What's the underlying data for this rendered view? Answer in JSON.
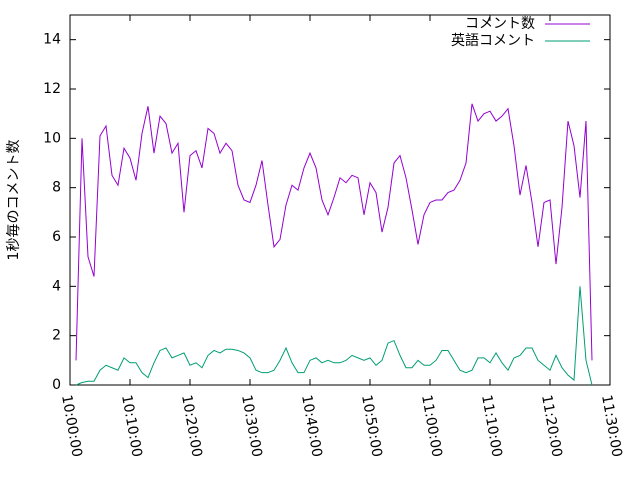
{
  "chart_data": {
    "type": "line",
    "ylabel": "1秒毎のコメント数",
    "x": [
      "10:01:00",
      "10:02:00",
      "10:03:00",
      "10:04:00",
      "10:05:00",
      "10:06:00",
      "10:07:00",
      "10:08:00",
      "10:09:00",
      "10:10:00",
      "10:11:00",
      "10:12:00",
      "10:13:00",
      "10:14:00",
      "10:15:00",
      "10:16:00",
      "10:17:00",
      "10:18:00",
      "10:19:00",
      "10:20:00",
      "10:21:00",
      "10:22:00",
      "10:23:00",
      "10:24:00",
      "10:25:00",
      "10:26:00",
      "10:27:00",
      "10:28:00",
      "10:29:00",
      "10:30:00",
      "10:31:00",
      "10:32:00",
      "10:33:00",
      "10:34:00",
      "10:35:00",
      "10:36:00",
      "10:37:00",
      "10:38:00",
      "10:39:00",
      "10:40:00",
      "10:41:00",
      "10:42:00",
      "10:43:00",
      "10:44:00",
      "10:45:00",
      "10:46:00",
      "10:47:00",
      "10:48:00",
      "10:49:00",
      "10:50:00",
      "10:51:00",
      "10:52:00",
      "10:53:00",
      "10:54:00",
      "10:55:00",
      "10:56:00",
      "10:57:00",
      "10:58:00",
      "10:59:00",
      "11:00:00",
      "11:01:00",
      "11:02:00",
      "11:03:00",
      "11:04:00",
      "11:05:00",
      "11:06:00",
      "11:07:00",
      "11:08:00",
      "11:09:00",
      "11:10:00",
      "11:11:00",
      "11:12:00",
      "11:13:00",
      "11:14:00",
      "11:15:00",
      "11:16:00",
      "11:17:00",
      "11:18:00",
      "11:19:00",
      "11:20:00",
      "11:21:00",
      "11:22:00",
      "11:23:00",
      "11:24:00",
      "11:25:00",
      "11:26:00",
      "11:27:00"
    ],
    "series": [
      {
        "name": "コメント数",
        "color": "#9400d3",
        "values": [
          1.0,
          10.0,
          5.2,
          4.4,
          10.1,
          10.5,
          8.5,
          8.1,
          9.6,
          9.2,
          8.3,
          10.2,
          11.3,
          9.4,
          10.9,
          10.6,
          9.4,
          9.8,
          7.0,
          9.3,
          9.5,
          8.8,
          10.4,
          10.2,
          9.4,
          9.8,
          9.5,
          8.1,
          7.5,
          7.4,
          8.1,
          9.1,
          7.3,
          5.6,
          5.9,
          7.3,
          8.1,
          7.9,
          8.8,
          9.4,
          8.8,
          7.5,
          6.9,
          7.6,
          8.4,
          8.2,
          8.5,
          8.4,
          6.9,
          8.2,
          7.8,
          6.2,
          7.2,
          9.0,
          9.3,
          8.4,
          7.1,
          5.7,
          6.9,
          7.4,
          7.5,
          7.5,
          7.8,
          7.9,
          8.3,
          9.0,
          11.4,
          10.7,
          11.0,
          11.1,
          10.7,
          10.9,
          11.2,
          9.7,
          7.7,
          8.9,
          7.4,
          5.6,
          7.4,
          7.5,
          4.9,
          7.2,
          10.7,
          9.7,
          7.6,
          10.7,
          1.0
        ]
      },
      {
        "name": "英語コメント",
        "color": "#009e73",
        "values": [
          0,
          0.1,
          0.15,
          0.15,
          0.6,
          0.8,
          0.7,
          0.6,
          1.1,
          0.9,
          0.9,
          0.5,
          0.3,
          0.9,
          1.4,
          1.5,
          1.1,
          1.2,
          1.3,
          0.8,
          0.9,
          0.7,
          1.2,
          1.4,
          1.3,
          1.45,
          1.45,
          1.4,
          1.3,
          1.1,
          0.6,
          0.5,
          0.5,
          0.6,
          1.0,
          1.5,
          0.9,
          0.5,
          0.5,
          1.0,
          1.1,
          0.9,
          1.0,
          0.9,
          0.9,
          1.0,
          1.2,
          1.1,
          1.0,
          1.1,
          0.8,
          1.0,
          1.7,
          1.8,
          1.2,
          0.7,
          0.7,
          1.0,
          0.8,
          0.8,
          1.0,
          1.4,
          1.4,
          1.0,
          0.6,
          0.5,
          0.6,
          1.1,
          1.1,
          0.9,
          1.3,
          0.9,
          0.6,
          1.1,
          1.2,
          1.5,
          1.5,
          1.0,
          0.8,
          0.6,
          1.2,
          0.7,
          0.4,
          0.2,
          4.0,
          1.0,
          0.0
        ]
      }
    ],
    "xlim": [
      "10:00:00",
      "11:30:00"
    ],
    "xticks": [
      "10:00:00",
      "10:10:00",
      "10:20:00",
      "10:30:00",
      "10:40:00",
      "10:50:00",
      "11:00:00",
      "11:10:00",
      "11:20:00",
      "11:30:00"
    ],
    "ylim": [
      0,
      15
    ],
    "yticks": [
      0,
      2,
      4,
      6,
      8,
      10,
      12,
      14
    ],
    "legend": "top-right"
  }
}
